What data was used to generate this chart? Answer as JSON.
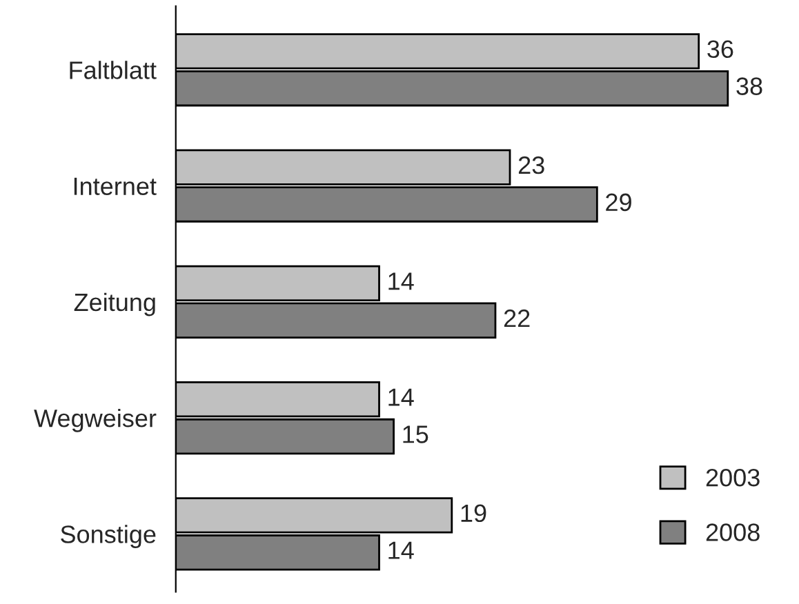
{
  "chart_data": {
    "type": "bar",
    "orientation": "horizontal",
    "categories": [
      "Faltblatt",
      "Internet",
      "Zeitung",
      "Wegweiser",
      "Sonstige"
    ],
    "series": [
      {
        "name": "2003",
        "color": "#c0c0c0",
        "values": [
          36,
          23,
          14,
          14,
          19
        ]
      },
      {
        "name": "2008",
        "color": "#808080",
        "values": [
          38,
          29,
          22,
          15,
          14
        ]
      }
    ],
    "data_labels": true,
    "legend": "bottom right",
    "grid": false
  }
}
